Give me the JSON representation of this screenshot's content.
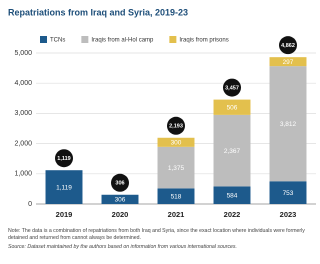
{
  "chart_data": {
    "type": "stacked_bar",
    "title": "Repatriations from Iraq and Syria, 2019-23",
    "categories": [
      "2019",
      "2020",
      "2021",
      "2022",
      "2023"
    ],
    "series": [
      {
        "name": "TCNs",
        "color": "#1d5a8c",
        "values": [
          1119,
          306,
          518,
          584,
          753
        ],
        "value_labels": [
          "1,119",
          "306",
          "518",
          "584",
          "753"
        ]
      },
      {
        "name": "Iraqis from al-Hol camp",
        "color": "#bdbdbd",
        "values": [
          null,
          null,
          1375,
          2367,
          3812
        ],
        "value_labels": [
          null,
          null,
          "1,375",
          "2,367",
          "3,812"
        ]
      },
      {
        "name": "Iraqis from prisons",
        "color": "#e3c04d",
        "values": [
          null,
          null,
          300,
          506,
          297
        ]
      }
    ],
    "totals": [
      1119,
      306,
      2193,
      3457,
      4862
    ],
    "totals_labels": [
      "1,119",
      "306",
      "2,193",
      "3,457",
      "4,862"
    ],
    "ylim": [
      0,
      5000
    ],
    "yticks": [
      {
        "value": 0,
        "label": "0"
      },
      {
        "value": 1000,
        "label": "1,000"
      },
      {
        "value": 2000,
        "label": "2,000"
      },
      {
        "value": 3000,
        "label": "3,000"
      },
      {
        "value": 4000,
        "label": "4,000"
      },
      {
        "value": 5000,
        "label": "5,000"
      }
    ],
    "grid": true,
    "note": "Note: The data is a combination of repatriations from both Iraq and Syria, since the exact location where individuals were formerly detained and returned from cannot always be determined.",
    "source": "Source: Dataset maintained by the authors based on information from various international sources."
  }
}
